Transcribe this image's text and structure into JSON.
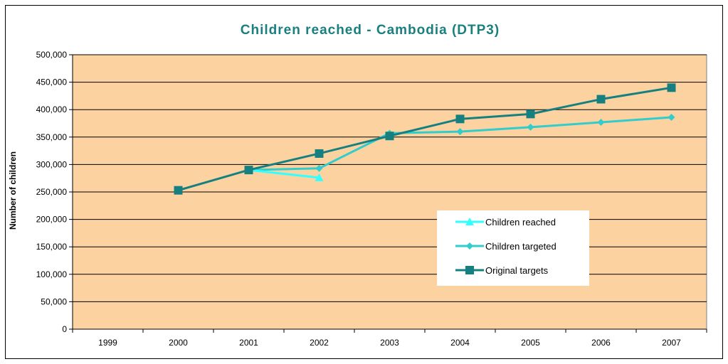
{
  "chart_data": {
    "type": "line",
    "title": "Children reached - Cambodia (DTP3)",
    "xlabel": "",
    "ylabel": "Number of children",
    "categories": [
      "1999",
      "2000",
      "2001",
      "2002",
      "2003",
      "2004",
      "2005",
      "2006",
      "2007"
    ],
    "ylim": [
      0,
      500000
    ],
    "yticks": [
      0,
      50000,
      100000,
      150000,
      200000,
      250000,
      300000,
      350000,
      400000,
      450000,
      500000
    ],
    "ytick_labels": [
      "0",
      "50,000",
      "100,000",
      "150,000",
      "200,000",
      "250,000",
      "300,000",
      "350,000",
      "400,000",
      "450,000",
      "500,000"
    ],
    "grid": true,
    "legend_position": "right",
    "plot_background": "#fcd3a0",
    "series": [
      {
        "name": "Children reached",
        "color": "#33ffff",
        "marker": "triangle",
        "values": [
          null,
          null,
          290000,
          276000,
          null,
          null,
          null,
          null,
          null
        ]
      },
      {
        "name": "Children targeted",
        "color": "#33cccc",
        "marker": "diamond",
        "values": [
          null,
          null,
          290000,
          293000,
          357000,
          360000,
          368000,
          377000,
          386000
        ]
      },
      {
        "name": "Original targets",
        "color": "#168080",
        "marker": "square",
        "values": [
          null,
          253000,
          290000,
          320000,
          352000,
          383000,
          392000,
          419000,
          440000
        ]
      }
    ]
  }
}
